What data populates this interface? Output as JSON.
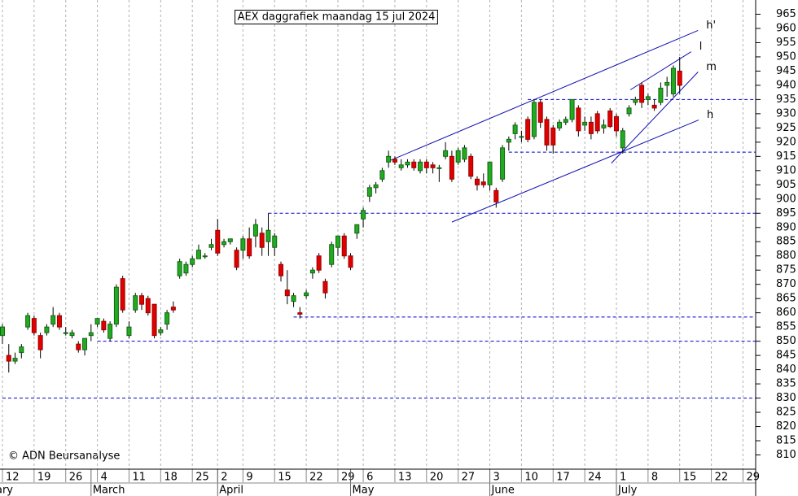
{
  "chart_data": {
    "type": "candlestick",
    "title": "AEX daggrafiek maandag 15 jul 2024",
    "credit": "© ADN Beursanalyse",
    "open": [
      852,
      845,
      843,
      846,
      855,
      858,
      852,
      853,
      856,
      859,
      853,
      852,
      849,
      847,
      852,
      856,
      857,
      851,
      856,
      872,
      852,
      861,
      866,
      865,
      863,
      853,
      856,
      862,
      873,
      874,
      877,
      879,
      880,
      883,
      889,
      884,
      885,
      882,
      882,
      886,
      887,
      888,
      885,
      883,
      877,
      868,
      864,
      860,
      866,
      874,
      880,
      871,
      877,
      883,
      887,
      880,
      888,
      893,
      901,
      904,
      907,
      913,
      914,
      911,
      912,
      913,
      910,
      913,
      912,
      911,
      915,
      915,
      913,
      914,
      915,
      907,
      906,
      905,
      903,
      907,
      920,
      923,
      922,
      928,
      922,
      934,
      928,
      925,
      925,
      927,
      928,
      932,
      926,
      927,
      930,
      925,
      931,
      929,
      918,
      930,
      934,
      940,
      935,
      933,
      934,
      940,
      937,
      945
    ],
    "high": [
      856,
      849,
      846,
      849,
      860,
      859,
      853,
      856,
      862,
      860,
      855,
      854,
      850,
      851,
      856,
      858,
      858,
      857,
      870,
      873,
      857,
      867,
      867,
      866,
      863,
      855,
      861,
      864,
      879,
      878,
      880,
      884,
      881,
      886,
      893,
      886,
      886,
      883,
      887,
      890,
      893,
      890,
      895,
      888,
      878,
      875,
      867,
      862,
      868,
      876,
      881,
      872,
      885,
      887,
      888,
      881,
      891,
      897,
      905,
      906,
      911,
      917,
      915,
      914,
      914,
      914,
      914,
      914,
      913,
      912,
      920,
      917,
      918,
      919,
      916,
      908,
      909,
      913,
      904,
      919,
      922,
      927,
      924,
      929,
      935,
      935,
      929,
      926,
      928,
      929,
      935,
      933,
      929,
      929,
      931,
      928,
      932,
      930,
      925,
      933,
      936,
      941,
      937,
      935,
      941,
      943,
      947,
      950
    ],
    "low": [
      849,
      839,
      842,
      844,
      854,
      852,
      844,
      852,
      855,
      854,
      852,
      851,
      846,
      845,
      850,
      855,
      853,
      850,
      855,
      860,
      851,
      860,
      861,
      859,
      851,
      852,
      854,
      860,
      872,
      873,
      876,
      879,
      879,
      882,
      880,
      883,
      884,
      875,
      879,
      879,
      883,
      880,
      880,
      880,
      871,
      863,
      862,
      858,
      865,
      872,
      874,
      865,
      876,
      880,
      879,
      875,
      886,
      890,
      899,
      902,
      906,
      911,
      912,
      910,
      911,
      910,
      909,
      909,
      909,
      906,
      914,
      906,
      912,
      913,
      907,
      903,
      904,
      903,
      897,
      906,
      917,
      921,
      920,
      920,
      921,
      925,
      917,
      916,
      924,
      926,
      927,
      922,
      924,
      921,
      923,
      923,
      925,
      922,
      916,
      929,
      933,
      932,
      933,
      931,
      933,
      936,
      936,
      937
    ],
    "close": [
      855,
      843,
      844,
      848,
      859,
      853,
      847,
      855,
      859,
      855,
      853,
      853,
      847,
      851,
      853,
      858,
      854,
      856,
      869,
      861,
      855,
      866,
      863,
      860,
      852,
      854,
      860,
      861,
      878,
      877,
      879,
      882,
      880,
      884,
      881,
      885,
      886,
      876,
      886,
      880,
      891,
      883,
      889,
      887,
      873,
      866,
      866,
      859.5,
      867,
      875,
      875,
      867,
      884,
      887,
      880,
      876,
      891,
      896,
      904,
      905,
      910,
      915,
      913,
      912,
      913,
      911,
      913,
      911,
      911,
      911,
      917,
      907,
      917,
      918,
      908,
      905,
      905,
      913,
      899,
      918,
      921,
      926,
      922,
      921,
      934,
      927,
      919,
      919,
      927,
      928,
      935,
      924,
      927,
      923,
      924,
      926,
      925.5,
      924,
      924,
      932,
      935,
      934,
      936,
      932,
      939,
      941,
      946,
      940
    ],
    "up_color": "#22aa22",
    "down_color": "#e00000",
    "wick_color": "#000000",
    "xlim": [
      -0.4,
      118.6
    ],
    "xticks": [
      {
        "value": 0,
        "label": "12"
      },
      {
        "value": 5,
        "label": "19"
      },
      {
        "value": 10,
        "label": "26"
      },
      {
        "value": 15,
        "label": "4"
      },
      {
        "value": 20,
        "label": "11"
      },
      {
        "value": 25,
        "label": "18"
      },
      {
        "value": 30,
        "label": "25"
      },
      {
        "value": 34,
        "label": "2"
      },
      {
        "value": 38,
        "label": "9"
      },
      {
        "value": 43,
        "label": "15"
      },
      {
        "value": 48,
        "label": "22"
      },
      {
        "value": 53,
        "label": "29"
      },
      {
        "value": 57,
        "label": "6"
      },
      {
        "value": 62,
        "label": "13"
      },
      {
        "value": 67,
        "label": "20"
      },
      {
        "value": 72,
        "label": "27"
      },
      {
        "value": 77,
        "label": "3"
      },
      {
        "value": 82,
        "label": "10"
      },
      {
        "value": 87,
        "label": "17"
      },
      {
        "value": 92,
        "label": "24"
      },
      {
        "value": 97,
        "label": "1"
      },
      {
        "value": 102,
        "label": "8"
      },
      {
        "value": 107,
        "label": "15"
      },
      {
        "value": 112,
        "label": "22"
      },
      {
        "value": 117,
        "label": "29"
      }
    ],
    "month_ticks": [
      {
        "value": -6,
        "label": "February"
      },
      {
        "value": 14,
        "label": "March"
      },
      {
        "value": 34,
        "label": "April"
      },
      {
        "value": 55,
        "label": "May"
      },
      {
        "value": 77,
        "label": "June"
      },
      {
        "value": 97,
        "label": "July"
      }
    ],
    "ylim": [
      805,
      970
    ],
    "yticks": [
      810,
      815,
      820,
      825,
      830,
      835,
      840,
      845,
      850,
      855,
      860,
      865,
      870,
      875,
      880,
      885,
      890,
      895,
      900,
      905,
      910,
      915,
      920,
      925,
      930,
      935,
      940,
      945,
      950,
      955,
      960,
      965
    ],
    "levels": [
      {
        "value": 935,
        "from": 83
      },
      {
        "value": 916.5,
        "from": 80
      },
      {
        "value": 895,
        "from": 42
      },
      {
        "value": 858.5,
        "from": 46
      },
      {
        "value": 850,
        "from": 15
      },
      {
        "value": 830,
        "from": 0
      }
    ],
    "level_color": "#0000cc",
    "trend_color": "#1010b0",
    "trendlines": [
      {
        "label": "h'",
        "x": [
          61.2,
          109.9
        ],
        "y": [
          913.5,
          959.3
        ]
      },
      {
        "label": "l",
        "x": [
          99.2,
          108.8
        ],
        "y": [
          938.4,
          951.8
        ]
      },
      {
        "label": "m",
        "x": [
          96.2,
          109.9
        ],
        "y": [
          912.6,
          944.7
        ]
      },
      {
        "label": "h",
        "x": [
          71,
          110
        ],
        "y": [
          891.9,
          927.8
        ]
      }
    ],
    "grid": true
  }
}
